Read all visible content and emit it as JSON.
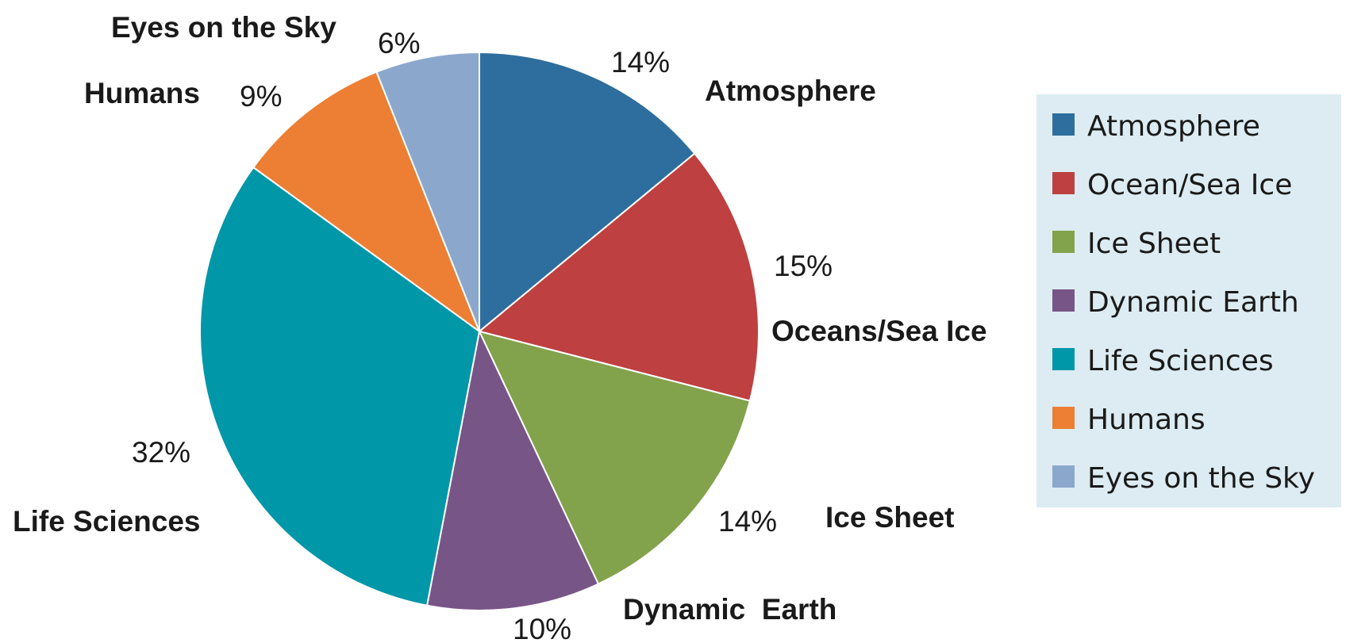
{
  "chart_data": {
    "type": "pie",
    "title": "",
    "slices": [
      {
        "label": "Atmosphere",
        "legend": "Atmosphere",
        "value": 14,
        "value_label": "14%",
        "color": "#2e6e9e"
      },
      {
        "label": "Oceans/Sea Ice",
        "legend": "Ocean/Sea Ice",
        "value": 15,
        "value_label": "15%",
        "color": "#be4040"
      },
      {
        "label": "Ice Sheet",
        "legend": "Ice Sheet",
        "value": 14,
        "value_label": "14%",
        "color": "#82a24c"
      },
      {
        "label": "Dynamic  Earth",
        "legend": "Dynamic Earth",
        "value": 10,
        "value_label": "10%",
        "color": "#785587"
      },
      {
        "label": "Life Sciences",
        "legend": "Life Sciences",
        "value": 32,
        "value_label": "32%",
        "color": "#0097a8"
      },
      {
        "label": "Humans",
        "legend": "Humans",
        "value": 9,
        "value_label": "9%",
        "color": "#ec7f33"
      },
      {
        "label": "Eyes on the Sky",
        "legend": "Eyes on the Sky",
        "value": 6,
        "value_label": "6%",
        "color": "#8ba8cc"
      }
    ],
    "legend": {
      "position": "right",
      "background": "#dcecf2"
    }
  }
}
